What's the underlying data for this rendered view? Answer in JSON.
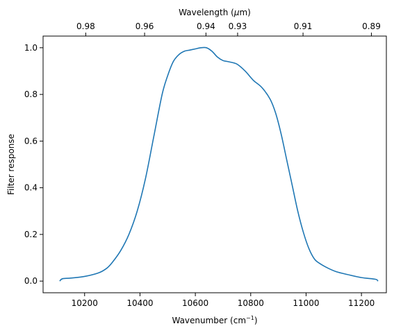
{
  "chart_data": {
    "type": "line",
    "title": "",
    "xlabel": "Wavenumber (cm",
    "xlabel_superscript": "−1",
    "xlabel_suffix": ")",
    "ylabel": "Filter response",
    "secondary_xlabel": "Wavelength (",
    "secondary_xlabel_symbol": "μ",
    "secondary_xlabel_suffix": "m)",
    "xlim": [
      10050,
      11290
    ],
    "ylim": [
      -0.05,
      1.05
    ],
    "xticks": [
      10200,
      10400,
      10600,
      10800,
      11000,
      11200
    ],
    "yticks": [
      0.0,
      0.2,
      0.4,
      0.6,
      0.8,
      1.0
    ],
    "ytick_labels": [
      "0.0",
      "0.2",
      "0.4",
      "0.6",
      "0.8",
      "1.0"
    ],
    "secondary_xticks": [
      0.98,
      0.96,
      0.94,
      0.93,
      0.91,
      0.89
    ],
    "grid": false,
    "color": "#1f77b4",
    "series": [
      {
        "x": [
          10110,
          10120,
          10150,
          10200,
          10250,
          10280,
          10300,
          10330,
          10360,
          10390,
          10420,
          10450,
          10480,
          10500,
          10520,
          10540,
          10560,
          10580,
          10600,
          10620,
          10640,
          10660,
          10680,
          10700,
          10720,
          10750,
          10780,
          10810,
          10840,
          10870,
          10890,
          10910,
          10930,
          10950,
          10970,
          10990,
          11010,
          11030,
          11050,
          11080,
          11110,
          11150,
          11200,
          11250,
          11260
        ],
        "y": [
          0.0,
          0.01,
          0.013,
          0.02,
          0.035,
          0.055,
          0.08,
          0.13,
          0.2,
          0.3,
          0.44,
          0.62,
          0.8,
          0.88,
          0.94,
          0.97,
          0.985,
          0.99,
          0.995,
          1.0,
          1.0,
          0.985,
          0.96,
          0.945,
          0.94,
          0.93,
          0.9,
          0.86,
          0.83,
          0.78,
          0.72,
          0.63,
          0.52,
          0.41,
          0.3,
          0.21,
          0.14,
          0.095,
          0.075,
          0.055,
          0.04,
          0.028,
          0.015,
          0.008,
          0.0
        ]
      }
    ]
  }
}
